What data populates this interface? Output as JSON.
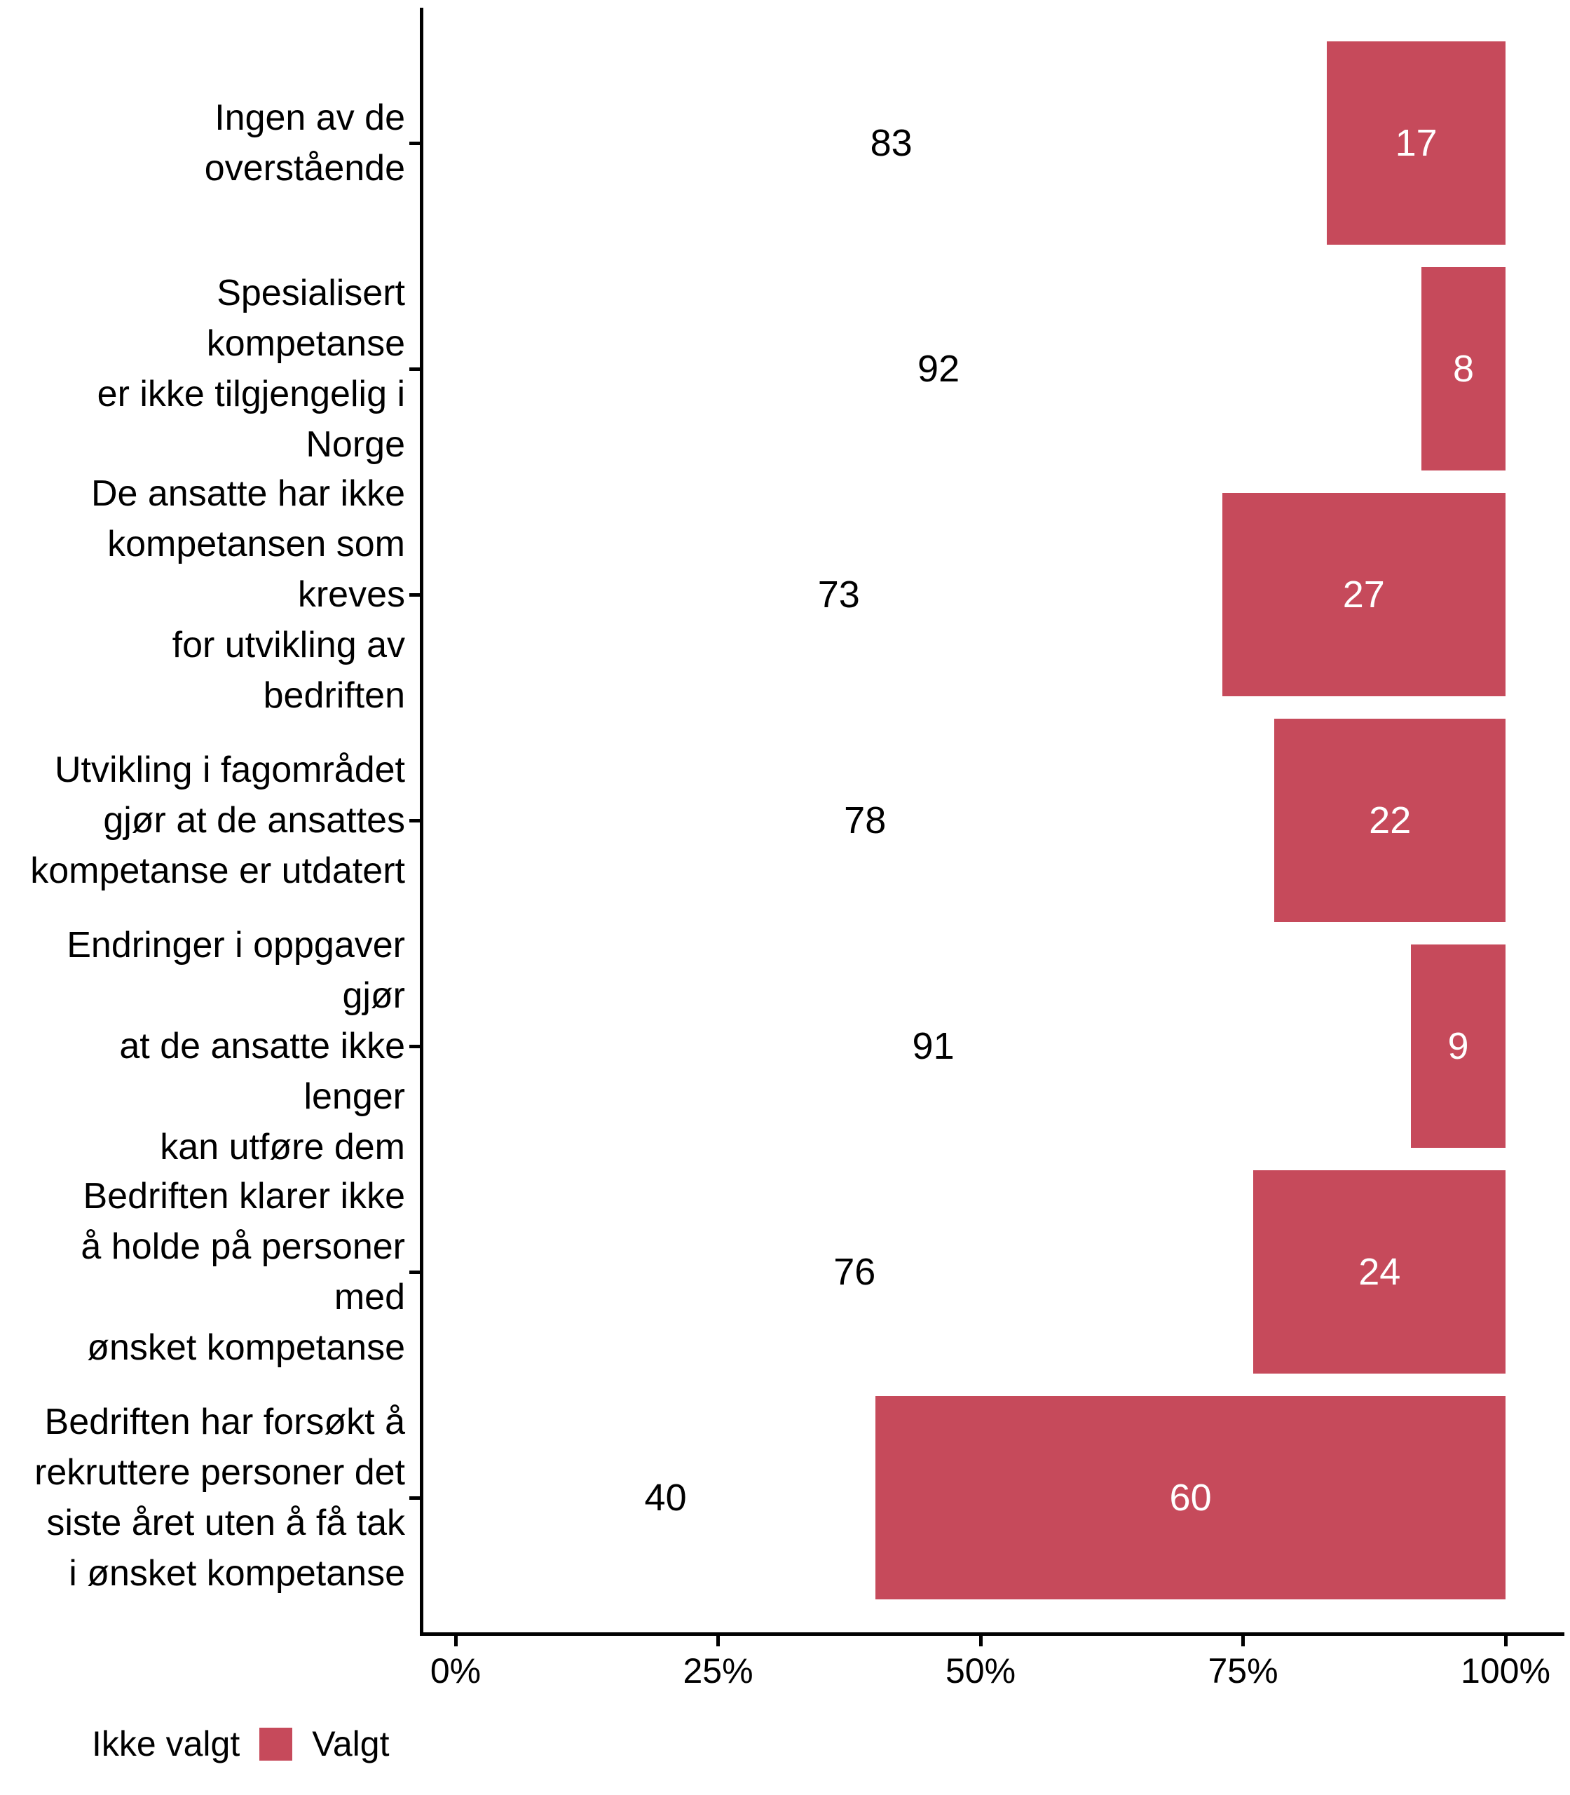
{
  "chart_data": {
    "type": "bar",
    "orientation": "horizontal",
    "stacked": true,
    "unit": "percent",
    "title": "",
    "xlabel": "",
    "ylabel": "",
    "grid": false,
    "categories": [
      "Ingen av de overstående",
      "Spesialisert kompetanse er ikke tilgjengelig i Norge",
      "De ansatte har ikke kompetansen som kreves for utvikling av bedriften",
      "Utvikling i fagområdet gjør at de ansattes kompetanse er utdatert",
      "Endringer i oppgaver gjør at de ansatte ikke lenger kan utføre dem",
      "Bedriften klarer ikke å holde på personer med ønsket kompetanse",
      "Bedriften har forsøkt å rekruttere personer det siste året uten å få tak i ønsket kompetanse"
    ],
    "categories_wrapped": [
      "Ingen av de overstående",
      "Spesialisert kompetanse\ner ikke tilgjengelig i\nNorge",
      "De ansatte har ikke\nkompetansen som kreves\nfor utvikling av\nbedriften",
      "Utvikling i fagområdet\ngjør at de ansattes\nkompetanse er utdatert",
      "Endringer i oppgaver gjør\nat de ansatte ikke lenger\nkan utføre dem",
      "Bedriften klarer ikke\nå holde på personer med\nønsket kompetanse",
      "Bedriften har forsøkt å\nrekruttere personer det\nsiste året uten å få tak\ni ønsket kompetanse"
    ],
    "series": [
      {
        "name": "Ikke valgt",
        "color": "#ffffff",
        "label_color": "#000000",
        "values": [
          83,
          92,
          73,
          78,
          91,
          76,
          40
        ]
      },
      {
        "name": "Valgt",
        "color": "#c64a5b",
        "label_color": "#ffffff",
        "values": [
          17,
          8,
          27,
          22,
          9,
          24,
          60
        ]
      }
    ],
    "value_labels_position": "segment-midpoint",
    "x_axis": {
      "range": [
        0,
        100
      ],
      "tick_values": [
        0,
        25,
        50,
        75,
        100
      ],
      "tick_labels": [
        "0%",
        "25%",
        "50%",
        "75%",
        "100%"
      ]
    },
    "legend": {
      "position": "bottom-left",
      "items": [
        {
          "label": "Ikke valgt",
          "color": "#ffffff"
        },
        {
          "label": "Valgt",
          "color": "#c64a5b"
        }
      ]
    },
    "axis_color": "#000000",
    "text_color": "#000000",
    "background_color": "#ffffff"
  }
}
